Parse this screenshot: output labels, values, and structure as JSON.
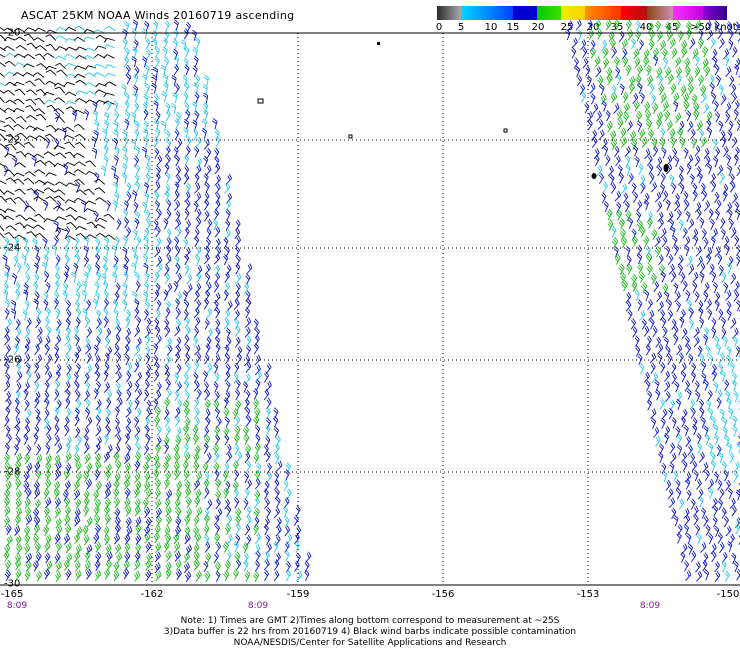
{
  "header": {
    "title": "ASCAT 25KM NOAA Winds 20160719 ascending"
  },
  "legend": {
    "bins": [
      {
        "label": "0",
        "color": "#3c3c3c"
      },
      {
        "label": "5",
        "color": "#9a9a9a"
      },
      {
        "label": "10",
        "color": "#00b4ff"
      },
      {
        "label": "15",
        "color": "#0000ff"
      },
      {
        "label": "20",
        "color": "#00c800"
      },
      {
        "label": "25",
        "color": "#ffff00"
      },
      {
        "label": "30",
        "color": "#ff9000"
      },
      {
        "label": "35",
        "color": "#ff0000"
      },
      {
        "label": "40",
        "color": "#8b4513"
      },
      {
        "label": "45",
        "color": "#ff00ff"
      },
      {
        "label": ">50 knots",
        "color": "#8000c0"
      }
    ]
  },
  "axes": {
    "lat_labels": [
      "-20",
      "-22",
      "-24",
      "-26",
      "-28",
      "-30"
    ],
    "lon_labels": [
      "-165",
      "-162",
      "-159",
      "-156",
      "-153",
      "-150"
    ],
    "lat_range": [
      -30,
      -20
    ],
    "lon_range": [
      -165,
      -150
    ]
  },
  "pass_times": [
    "8:09",
    "8:09",
    "8:09"
  ],
  "notes": [
    "Note: 1) Times are GMT 2)Times along bottom correspond to measurement at ~25S",
    "3)Data buffer is 22 hrs from 20160719 4) Black wind barbs indicate possible contamination",
    "NOAA/NESDIS/Center for Satellite Applications and Research"
  ],
  "wind_colors": {
    "contaminated": "#000000",
    "light": "#22c8e8",
    "moderate": "#0a14c8",
    "fresh": "#18b818"
  }
}
